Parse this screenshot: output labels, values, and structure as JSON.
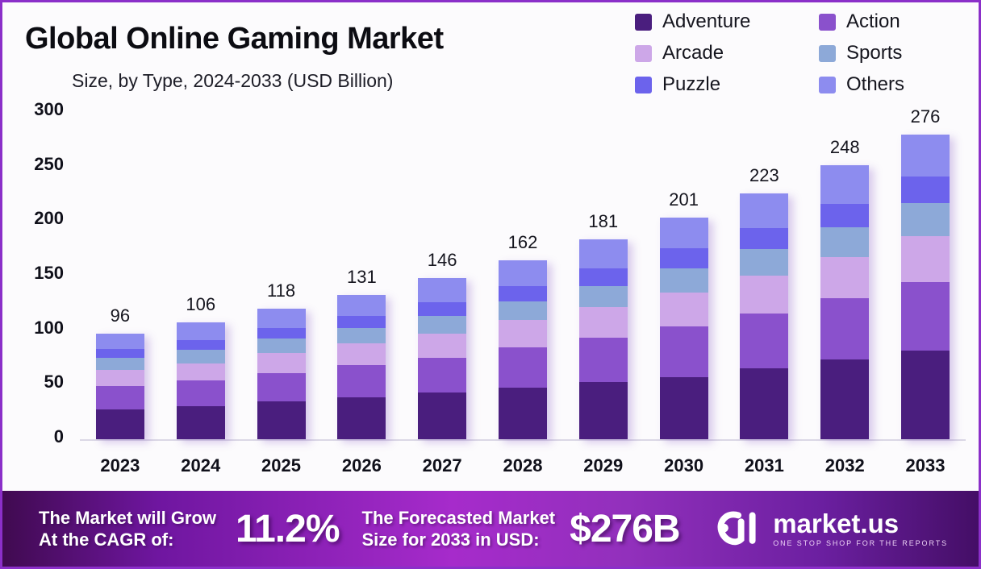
{
  "title": "Global Online Gaming Market",
  "subtitle": "Size, by Type, 2024-2033 (USD Billion)",
  "chart_data": {
    "type": "bar",
    "stacked": true,
    "title": "Global Online Gaming Market",
    "subtitle": "Size, by Type, 2024-2033 (USD Billion)",
    "categories": [
      "2023",
      "2024",
      "2025",
      "2026",
      "2027",
      "2028",
      "2029",
      "2030",
      "2031",
      "2032",
      "2033"
    ],
    "totals": [
      96,
      106,
      118,
      131,
      146,
      162,
      181,
      201,
      223,
      248,
      276
    ],
    "series": [
      {
        "name": "Adventure",
        "color": "#4A1E7E",
        "values": [
          27,
          30,
          34,
          38,
          42,
          47,
          52,
          56,
          64,
          72,
          80
        ]
      },
      {
        "name": "Action",
        "color": "#8A51CC",
        "values": [
          21,
          23,
          26,
          29,
          32,
          36,
          40,
          46,
          50,
          56,
          62
        ]
      },
      {
        "name": "Arcade",
        "color": "#CDA7E8",
        "values": [
          15,
          16,
          18,
          20,
          22,
          25,
          28,
          31,
          34,
          37,
          42
        ]
      },
      {
        "name": "Sports",
        "color": "#8DA9D8",
        "values": [
          11,
          12,
          13,
          14,
          16,
          17,
          19,
          22,
          24,
          27,
          30
        ]
      },
      {
        "name": "Puzzle",
        "color": "#6C63EC",
        "values": [
          8,
          9,
          10,
          11,
          12,
          14,
          16,
          18,
          19,
          21,
          24
        ]
      },
      {
        "name": "Others",
        "color": "#8D8CEF",
        "values": [
          14,
          16,
          17,
          19,
          22,
          23,
          26,
          28,
          32,
          35,
          38
        ]
      }
    ],
    "yticks": [
      0,
      50,
      100,
      150,
      200,
      250,
      300
    ],
    "ylim": [
      0,
      300
    ],
    "xlabel": "",
    "ylabel": "",
    "grid": false,
    "legend_position": "top-right"
  },
  "banner": {
    "grow_line1": "The Market will Grow",
    "grow_line2": "At the CAGR of:",
    "cagr_value": "11.2%",
    "forecast_line1": "The Forecasted Market",
    "forecast_line2": "Size for 2033 in USD:",
    "forecast_value": "$276B",
    "logo_text": "market.us",
    "logo_tagline": "ONE STOP SHOP FOR THE REPORTS"
  },
  "colors": {
    "frame_border": "#8B2FC9",
    "background": "#FCFBFD",
    "banner_mid": "#A62BCB",
    "text_dark": "#10101A"
  }
}
